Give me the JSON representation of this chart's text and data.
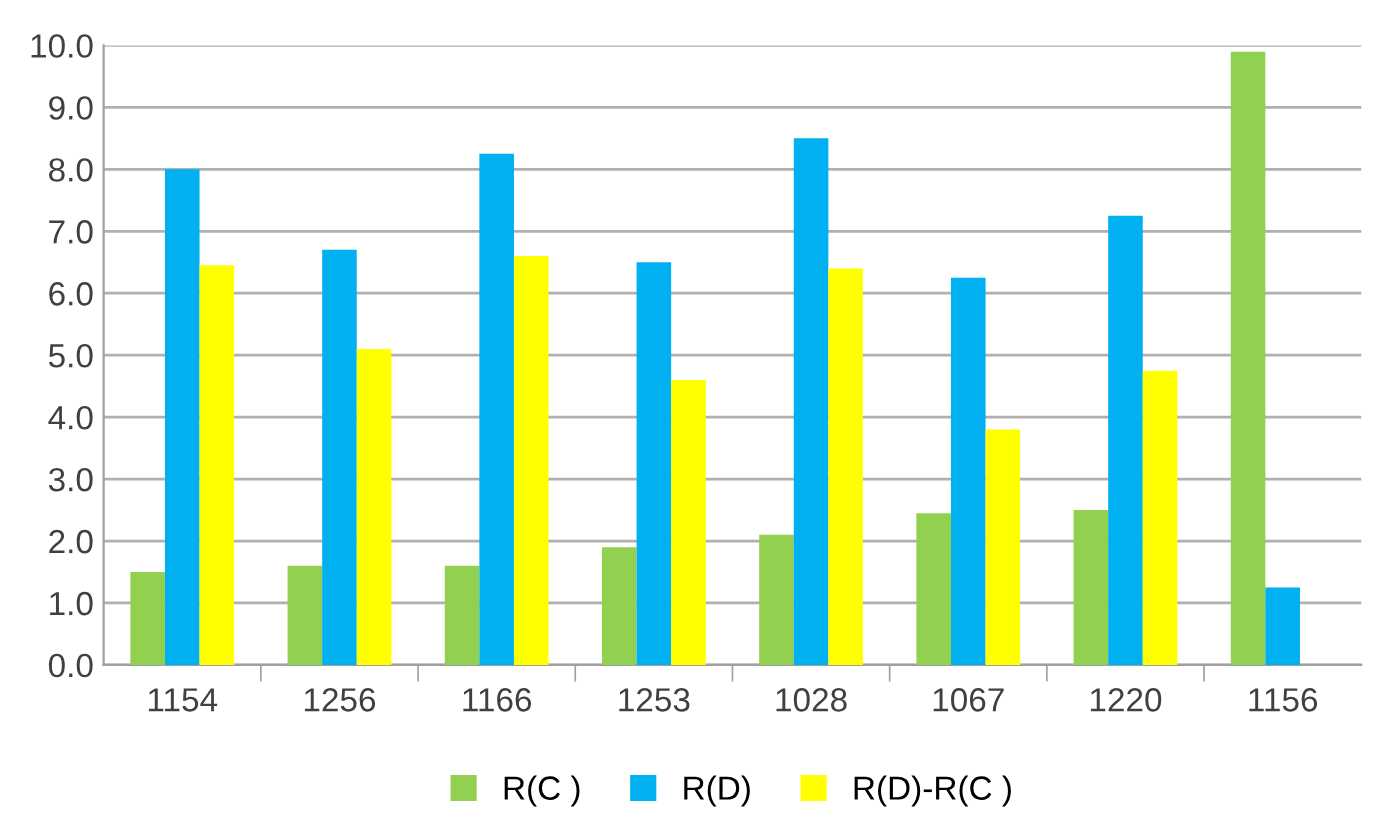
{
  "chart_data": {
    "type": "bar",
    "categories": [
      "1154",
      "1256",
      "1166",
      "1253",
      "1028",
      "1067",
      "1220",
      "1156"
    ],
    "series": [
      {
        "name": "R(C )",
        "color": "#92d050",
        "values": [
          1.5,
          1.6,
          1.6,
          1.9,
          2.1,
          2.45,
          2.5,
          9.9
        ]
      },
      {
        "name": "R(D)",
        "color": "#00b0f0",
        "values": [
          8.0,
          6.7,
          8.25,
          6.5,
          8.5,
          6.25,
          7.25,
          1.25
        ]
      },
      {
        "name": "R(D)-R(C )",
        "color": "#ffff00",
        "values": [
          6.45,
          5.1,
          6.6,
          4.6,
          6.4,
          3.8,
          4.75,
          null
        ]
      }
    ],
    "ylim": [
      0,
      10
    ],
    "yticks": [
      {
        "value": 0,
        "label": "0.0"
      },
      {
        "value": 1,
        "label": "1.0"
      },
      {
        "value": 2,
        "label": "2.0"
      },
      {
        "value": 3,
        "label": "3.0"
      },
      {
        "value": 4,
        "label": "4.0"
      },
      {
        "value": 5,
        "label": "5.0"
      },
      {
        "value": 6,
        "label": "6.0"
      },
      {
        "value": 7,
        "label": "7.0"
      },
      {
        "value": 8,
        "label": "8.0"
      },
      {
        "value": 9,
        "label": "9.0"
      },
      {
        "value": 10,
        "label": "10.0"
      }
    ],
    "grid": "y",
    "legend": "bottom"
  }
}
